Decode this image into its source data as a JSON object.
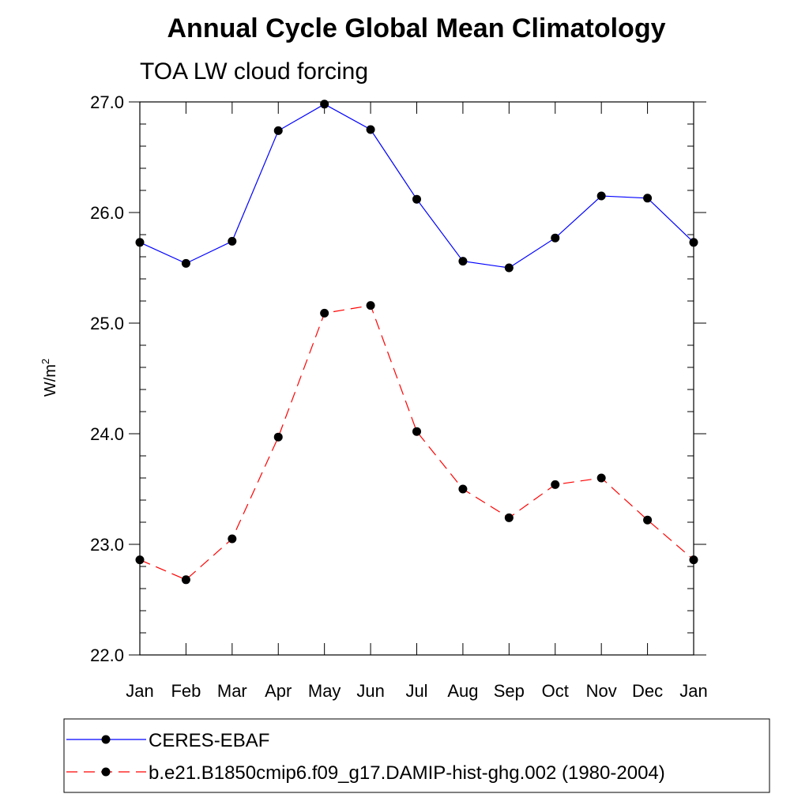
{
  "chart_data": {
    "type": "line",
    "title": "Annual Cycle Global Mean Climatology",
    "subtitle": "TOA LW cloud forcing",
    "ylabel": "W/m",
    "ylabel_superscript": "2",
    "xlabel": "",
    "categories": [
      "Jan",
      "Feb",
      "Mar",
      "Apr",
      "May",
      "Jun",
      "Jul",
      "Aug",
      "Sep",
      "Oct",
      "Nov",
      "Dec",
      "Jan"
    ],
    "ylim": [
      22.0,
      27.0
    ],
    "yticks": [
      "22.0",
      "23.0",
      "24.0",
      "25.0",
      "26.0",
      "27.0"
    ],
    "grid": false,
    "legend_position": "bottom",
    "series": [
      {
        "name": "CERES-EBAF",
        "color": "#0000ff",
        "line_style": "solid",
        "marker_color": "#000000",
        "values": [
          25.73,
          25.54,
          25.74,
          26.74,
          26.98,
          26.75,
          26.12,
          25.56,
          25.5,
          25.77,
          26.15,
          26.13,
          25.73
        ]
      },
      {
        "name": "b.e21.B1850cmip6.f09_g17.DAMIP-hist-ghg.002 (1980-2004)",
        "color": "#ff0000",
        "line_style": "dashed",
        "marker_color": "#000000",
        "values": [
          22.86,
          22.68,
          23.05,
          23.97,
          25.09,
          25.16,
          24.02,
          23.5,
          23.24,
          23.54,
          23.6,
          23.22,
          22.86
        ]
      }
    ]
  }
}
